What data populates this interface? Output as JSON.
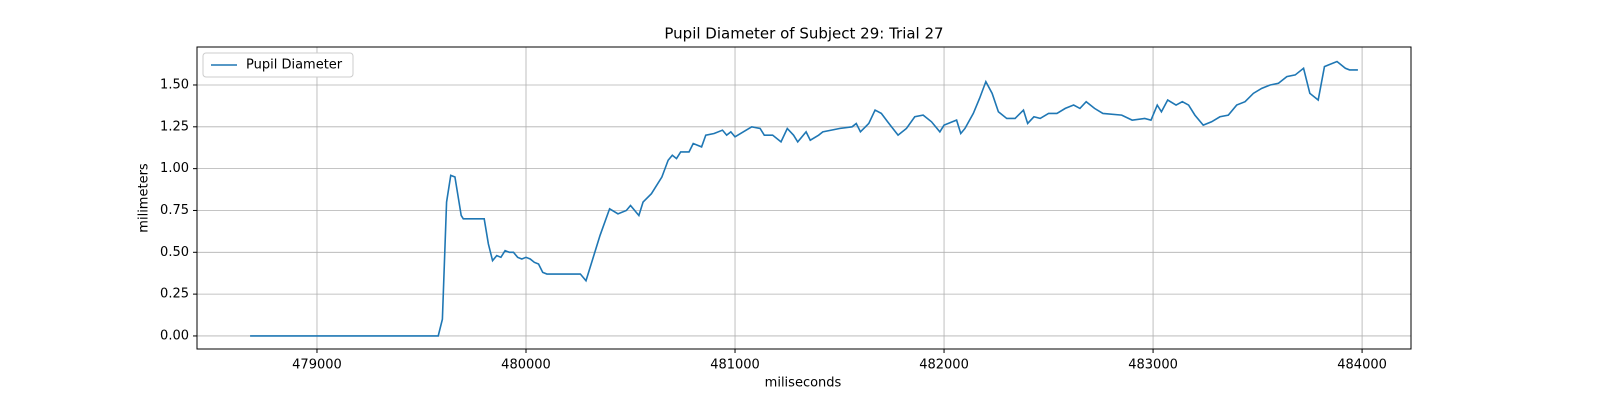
{
  "chart_data": {
    "type": "line",
    "title": "Pupil Diameter of Subject 29: Trial 27",
    "xlabel": "miliseconds",
    "ylabel": "milimeters",
    "x": [
      478680,
      479580,
      479600,
      479620,
      479640,
      479660,
      479690,
      479700,
      479800,
      479820,
      479840,
      479860,
      479880,
      479900,
      479920,
      479940,
      479960,
      479980,
      480000,
      480020,
      480040,
      480060,
      480080,
      480100,
      480200,
      480260,
      480287,
      480354,
      480400,
      480440,
      480480,
      480500,
      480540,
      480560,
      480600,
      480650,
      480680,
      480700,
      480720,
      480740,
      480780,
      480800,
      480840,
      480860,
      480900,
      480940,
      480960,
      480980,
      481000,
      481040,
      481080,
      481120,
      481140,
      481180,
      481220,
      481250,
      481280,
      481300,
      481340,
      481360,
      481400,
      481420,
      481500,
      481560,
      481580,
      481600,
      481640,
      481670,
      481700,
      481730,
      481780,
      481820,
      481860,
      481900,
      481940,
      481980,
      482000,
      482040,
      482060,
      482080,
      482100,
      482140,
      482170,
      482200,
      482230,
      482260,
      482300,
      482340,
      482380,
      482400,
      482430,
      482460,
      482500,
      482540,
      482580,
      482620,
      482650,
      482680,
      482720,
      482760,
      482850,
      482900,
      482960,
      482990,
      483020,
      483040,
      483070,
      483110,
      483140,
      483170,
      483200,
      483240,
      483280,
      483320,
      483360,
      483400,
      483440,
      483480,
      483520,
      483560,
      483600,
      483640,
      483680,
      483720,
      483750,
      483790,
      483820,
      483840,
      483880,
      483920,
      483940,
      483980
    ],
    "series": [
      {
        "name": "Pupil Diameter",
        "color": "#1f77b4",
        "values": [
          0,
          0,
          0.1,
          0.8,
          0.96,
          0.95,
          0.72,
          0.7,
          0.7,
          0.55,
          0.45,
          0.48,
          0.47,
          0.51,
          0.5,
          0.5,
          0.47,
          0.46,
          0.47,
          0.46,
          0.44,
          0.43,
          0.38,
          0.37,
          0.37,
          0.37,
          0.33,
          0.6,
          0.76,
          0.73,
          0.75,
          0.78,
          0.72,
          0.8,
          0.85,
          0.95,
          1.05,
          1.08,
          1.06,
          1.1,
          1.1,
          1.15,
          1.13,
          1.2,
          1.21,
          1.23,
          1.2,
          1.22,
          1.19,
          1.22,
          1.25,
          1.24,
          1.2,
          1.2,
          1.16,
          1.24,
          1.2,
          1.16,
          1.22,
          1.17,
          1.2,
          1.22,
          1.24,
          1.25,
          1.27,
          1.22,
          1.27,
          1.35,
          1.33,
          1.28,
          1.2,
          1.24,
          1.31,
          1.32,
          1.28,
          1.22,
          1.26,
          1.28,
          1.29,
          1.21,
          1.24,
          1.33,
          1.42,
          1.52,
          1.45,
          1.34,
          1.3,
          1.3,
          1.35,
          1.27,
          1.31,
          1.3,
          1.33,
          1.33,
          1.36,
          1.38,
          1.36,
          1.4,
          1.36,
          1.33,
          1.32,
          1.29,
          1.3,
          1.29,
          1.38,
          1.34,
          1.41,
          1.38,
          1.4,
          1.38,
          1.32,
          1.26,
          1.28,
          1.31,
          1.32,
          1.38,
          1.4,
          1.45,
          1.48,
          1.5,
          1.51,
          1.55,
          1.56,
          1.6,
          1.45,
          1.41,
          1.61,
          1.62,
          1.64,
          1.6,
          1.59,
          1.59
        ]
      }
    ],
    "xlim": [
      478426,
      484234
    ],
    "ylim": [
      -0.078,
      1.727
    ],
    "xticks": [
      479000,
      480000,
      481000,
      482000,
      483000,
      484000
    ],
    "yticks": [
      {
        "value": 0,
        "label": "0.00"
      },
      {
        "value": 0.25,
        "label": "0.25"
      },
      {
        "value": 0.5,
        "label": "0.50"
      },
      {
        "value": 0.75,
        "label": "0.75"
      },
      {
        "value": 1,
        "label": "1.00"
      },
      {
        "value": 1.25,
        "label": "1.25"
      },
      {
        "value": 1.5,
        "label": "1.50"
      }
    ],
    "grid": true,
    "legend": "upper left"
  }
}
